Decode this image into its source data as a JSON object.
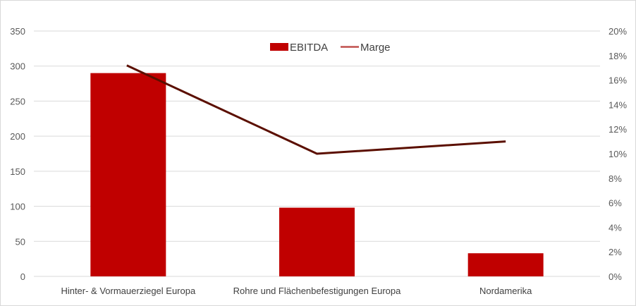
{
  "chart_data": {
    "type": "bar",
    "title": "",
    "categories": [
      "Hinter- & Vormauerziegel Europa",
      "Rohre und Flächenbefestigungen Europa",
      "Nordamerika"
    ],
    "series": [
      {
        "name": "EBITDA",
        "type": "bar",
        "axis": "left",
        "values": [
          290,
          98,
          33
        ],
        "color": "#c00000"
      },
      {
        "name": "Marge",
        "type": "line",
        "axis": "right",
        "values": [
          0.172,
          0.1,
          0.11
        ],
        "color": "#5b0f00"
      }
    ],
    "y_left": {
      "min": 0,
      "max": 350,
      "step": 50,
      "tick_labels": [
        "0",
        "50",
        "100",
        "150",
        "200",
        "250",
        "300",
        "350"
      ]
    },
    "y_right": {
      "min": 0,
      "max": 0.2,
      "step": 0.02,
      "tick_labels": [
        "0%",
        "2%",
        "4%",
        "6%",
        "8%",
        "10%",
        "12%",
        "14%",
        "16%",
        "18%",
        "20%"
      ]
    },
    "legend": {
      "position": "top-center",
      "entries": [
        "EBITDA",
        "Marge"
      ]
    },
    "grid": true,
    "colors": {
      "bar": "#c00000",
      "line": "#5b0f00",
      "legend_line": "#c0504d",
      "grid": "#d9d9d9"
    }
  }
}
